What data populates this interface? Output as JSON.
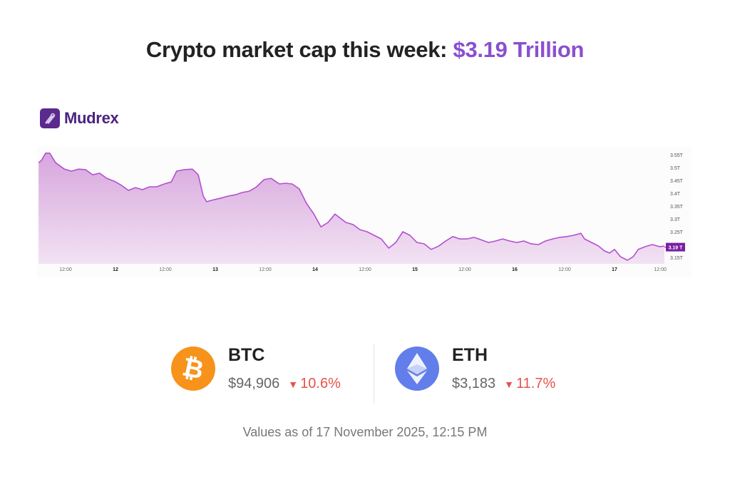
{
  "title": {
    "prefix": "Crypto market cap this week: ",
    "value": "$3.19 Trillion"
  },
  "brand": {
    "name": "Mudrex"
  },
  "colors": {
    "accent": "#8a4fd0",
    "line": "#b44fd0",
    "badge": "#7a1fa2",
    "btc": "#f7931a",
    "eth": "#627eea",
    "down": "#e5534b"
  },
  "chart_data": {
    "type": "area",
    "title": "Crypto market cap",
    "x_unit": "hours since 11 Nov 00:00",
    "x": [
      5.5,
      6.2,
      7.2,
      8.2,
      9.6,
      11.7,
      13.4,
      15.1,
      16.8,
      18.5,
      20.2,
      21.9,
      23.7,
      25.4,
      27.1,
      28.8,
      30.5,
      32.2,
      33.9,
      35.7,
      37.4,
      38.7,
      40.5,
      42.5,
      43.9,
      45.1,
      45.9,
      47.7,
      49.4,
      51.1,
      52.8,
      54.5,
      56.2,
      57.9,
      59.7,
      61.4,
      63.4,
      64.8,
      66.5,
      68.2,
      69.9,
      71.7,
      73.4,
      75.1,
      76.8,
      77.8,
      79.4,
      81.1,
      82.8,
      84.5,
      86.2,
      87.9,
      89.7,
      91.4,
      93.1,
      94.8,
      96.5,
      98.2,
      99.9,
      101.7,
      103.4,
      105.1,
      106.8,
      108.5,
      110.2,
      111.9,
      113.7,
      115.4,
      117.1,
      118.8,
      120.5,
      122.2,
      123.9,
      125.7,
      127.4,
      129.1,
      130.8,
      132.5,
      134.2,
      135.9,
      136.8,
      138.5,
      140.2,
      141.6,
      142.8,
      144.0,
      145.4,
      147.1,
      148.5,
      149.7,
      151.4,
      153.1,
      154.8,
      156.0
    ],
    "values": [
      3.519,
      3.528,
      3.556,
      3.556,
      3.519,
      3.494,
      3.486,
      3.494,
      3.492,
      3.472,
      3.478,
      3.458,
      3.447,
      3.431,
      3.411,
      3.422,
      3.414,
      3.425,
      3.425,
      3.436,
      3.444,
      3.486,
      3.492,
      3.494,
      3.472,
      3.389,
      3.367,
      3.375,
      3.381,
      3.389,
      3.394,
      3.403,
      3.408,
      3.425,
      3.453,
      3.458,
      3.436,
      3.439,
      3.436,
      3.417,
      3.361,
      3.319,
      3.269,
      3.286,
      3.319,
      3.306,
      3.286,
      3.278,
      3.258,
      3.25,
      3.236,
      3.222,
      3.186,
      3.208,
      3.25,
      3.236,
      3.208,
      3.203,
      3.181,
      3.194,
      3.214,
      3.231,
      3.222,
      3.222,
      3.228,
      3.219,
      3.208,
      3.214,
      3.222,
      3.214,
      3.208,
      3.214,
      3.203,
      3.2,
      3.214,
      3.222,
      3.228,
      3.231,
      3.236,
      3.244,
      3.222,
      3.208,
      3.194,
      3.175,
      3.167,
      3.181,
      3.153,
      3.139,
      3.153,
      3.181,
      3.192,
      3.2,
      3.192,
      3.194
    ],
    "ylim": [
      3.13,
      3.57
    ],
    "xlim": [
      5.5,
      156
    ],
    "y_ticks": [
      {
        "v": 3.55,
        "label": "3.55T"
      },
      {
        "v": 3.5,
        "label": "3.5T"
      },
      {
        "v": 3.45,
        "label": "3.45T"
      },
      {
        "v": 3.4,
        "label": "3.4T"
      },
      {
        "v": 3.35,
        "label": "3.35T"
      },
      {
        "v": 3.3,
        "label": "3.3T"
      },
      {
        "v": 3.25,
        "label": "3.25T"
      },
      {
        "v": 3.15,
        "label": "3.15T"
      }
    ],
    "x_ticks": [
      {
        "v": 12,
        "label": "12:00"
      },
      {
        "v": 24,
        "label": "12"
      },
      {
        "v": 36,
        "label": "12:00"
      },
      {
        "v": 48,
        "label": "13"
      },
      {
        "v": 60,
        "label": "12:00"
      },
      {
        "v": 72,
        "label": "14"
      },
      {
        "v": 84,
        "label": "12:00"
      },
      {
        "v": 96,
        "label": "15"
      },
      {
        "v": 108,
        "label": "12:00"
      },
      {
        "v": 120,
        "label": "16"
      },
      {
        "v": 132,
        "label": "12:00"
      },
      {
        "v": 144,
        "label": "17"
      },
      {
        "v": 155,
        "label": "12:00"
      }
    ],
    "current": {
      "v": 3.19,
      "label": "3.19 T"
    },
    "grid": false
  },
  "coins": [
    {
      "symbol": "BTC",
      "glyph": "₿",
      "price": "$94,906",
      "change": "10.6%",
      "direction": "down"
    },
    {
      "symbol": "ETH",
      "glyph": "◆",
      "price": "$3,183",
      "change": "11.7%",
      "direction": "down"
    }
  ],
  "footer": "Values as of 17 November 2025, 12:15 PM"
}
